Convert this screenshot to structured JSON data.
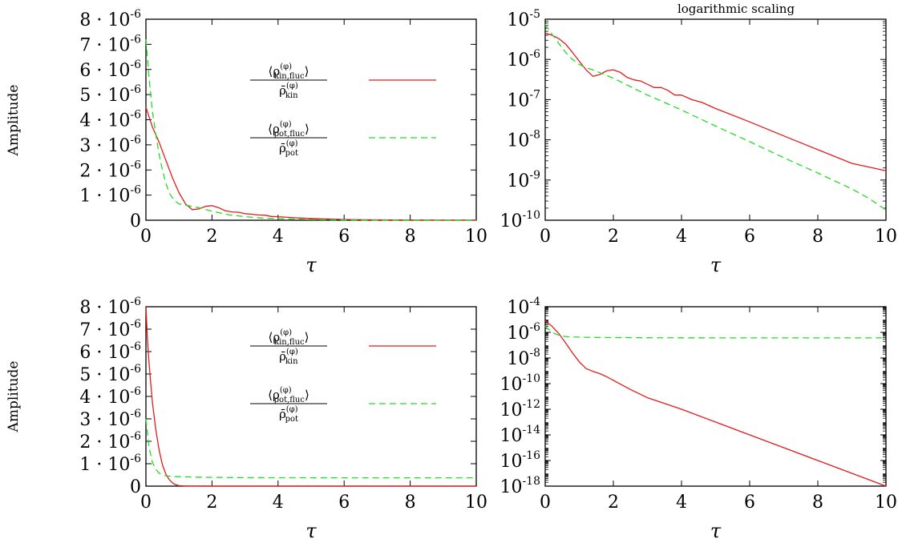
{
  "top_note": "logarithmic scaling",
  "chart_data": [
    {
      "id": "tl",
      "type": "line",
      "ylabel": "Amplitude",
      "xlabel": "τ",
      "yscale": "linear",
      "xlim": [
        0,
        10
      ],
      "ylim": [
        0,
        8e-06
      ],
      "xticks": [
        "0",
        "2",
        "4",
        "6",
        "8",
        "10"
      ],
      "yticks": [
        {
          "base": "0",
          "exp": ""
        },
        {
          "base": "1 · 10",
          "exp": "-6"
        },
        {
          "base": "2 · 10",
          "exp": "-6"
        },
        {
          "base": "3 · 10",
          "exp": "-6"
        },
        {
          "base": "4 · 10",
          "exp": "-6"
        },
        {
          "base": "5 · 10",
          "exp": "-6"
        },
        {
          "base": "6 · 10",
          "exp": "-6"
        },
        {
          "base": "7 · 10",
          "exp": "-6"
        },
        {
          "base": "8 · 10",
          "exp": "-6"
        }
      ],
      "legend": {
        "placement": "top-right",
        "entries": [
          {
            "num": "⟨ρ",
            "num_sub": "kin,fluc",
            "num_sup": "(φ)",
            "num_close": "⟩",
            "den": "ρ̄",
            "den_sub": "kin",
            "den_sup": "(φ)"
          },
          {
            "num": "⟨ρ",
            "num_sub": "pot,fluc",
            "num_sup": "(φ)",
            "num_close": "⟩",
            "den": "ρ̄",
            "den_sub": "pot",
            "den_sup": "(φ)"
          }
        ]
      },
      "series": [
        {
          "color": "#e41a1c",
          "dash": "none",
          "x": [
            0,
            0.2,
            0.4,
            0.6,
            0.8,
            1.0,
            1.2,
            1.4,
            1.6,
            1.8,
            2.0,
            2.2,
            2.4,
            2.6,
            2.8,
            3.0,
            3.2,
            3.4,
            3.6,
            3.8,
            4.0,
            4.5,
            5.0,
            6.0,
            7.0,
            8.0,
            9.0,
            10.0
          ],
          "y": [
            4.5e-06,
            3.7e-06,
            3.1e-06,
            2.4e-06,
            1.7e-06,
            1.1e-06,
            6.5e-07,
            4.2e-07,
            4.5e-07,
            5.5e-07,
            5.8e-07,
            5e-07,
            3.8e-07,
            3.3e-07,
            3.2e-07,
            2.6e-07,
            2.4e-07,
            2.1e-07,
            2e-07,
            1.5e-07,
            1.4e-07,
            1e-07,
            7e-08,
            3e-08,
            1.6e-08,
            8e-09,
            4e-09,
            2e-09
          ]
        },
        {
          "color": "#22dd22",
          "dash": "8,5",
          "x": [
            0,
            0.1,
            0.2,
            0.3,
            0.4,
            0.5,
            0.6,
            0.7,
            0.8,
            0.9,
            1.0,
            1.2,
            1.4,
            1.6,
            1.8,
            2.0,
            2.5,
            3.0,
            3.5,
            4.0,
            5.0,
            6.0,
            7.0,
            8.0,
            9.0,
            10.0
          ],
          "y": [
            7.2e-06,
            5.6e-06,
            4.3e-06,
            3.4e-06,
            2.6e-06,
            2e-06,
            1.5e-06,
            1.1e-06,
            9e-07,
            7.5e-07,
            6.5e-07,
            6e-07,
            5.5e-07,
            5e-07,
            4.3e-07,
            3.6e-07,
            2.2e-07,
            1.4e-07,
            9e-08,
            6e-08,
            2.5e-08,
            1e-08,
            4e-09,
            1.8e-09,
            8e-10,
            2e-10
          ]
        }
      ]
    },
    {
      "id": "tr",
      "type": "line",
      "ylabel": "",
      "xlabel": "τ",
      "yscale": "log",
      "xlim": [
        0,
        10
      ],
      "ylim": [
        1e-10,
        1e-05
      ],
      "xticks": [
        "0",
        "2",
        "4",
        "6",
        "8",
        "10"
      ],
      "yticks": [
        {
          "base": "10",
          "exp": "-10"
        },
        {
          "base": "10",
          "exp": "-9"
        },
        {
          "base": "10",
          "exp": "-8"
        },
        {
          "base": "10",
          "exp": "-7"
        },
        {
          "base": "10",
          "exp": "-6"
        },
        {
          "base": "10",
          "exp": "-5"
        }
      ],
      "series": [
        {
          "color": "#e41a1c",
          "dash": "none",
          "x": [
            0,
            0.2,
            0.4,
            0.6,
            0.8,
            1.0,
            1.2,
            1.4,
            1.6,
            1.8,
            2.0,
            2.2,
            2.4,
            2.6,
            2.8,
            3.0,
            3.2,
            3.4,
            3.6,
            3.8,
            4.0,
            4.3,
            4.6,
            5.0,
            6.0,
            7.0,
            8.0,
            9.0,
            10.0
          ],
          "y": [
            4.5e-06,
            4e-06,
            3.3e-06,
            2.4e-06,
            1.5e-06,
            9e-07,
            5.5e-07,
            3.8e-07,
            4.2e-07,
            5.2e-07,
            5.5e-07,
            4.8e-07,
            3.6e-07,
            3.1e-07,
            2.9e-07,
            2.4e-07,
            2e-07,
            2e-07,
            1.7e-07,
            1.3e-07,
            1.3e-07,
            1e-07,
            8.5e-08,
            6e-08,
            2.8e-08,
            1.25e-08,
            5.7e-09,
            2.6e-09,
            1.7e-09
          ]
        },
        {
          "color": "#22dd22",
          "dash": "8,5",
          "x": [
            0,
            0.1,
            0.2,
            0.3,
            0.4,
            0.5,
            0.6,
            0.8,
            1.0,
            1.2,
            1.4,
            1.6,
            1.8,
            2.0,
            2.5,
            3.0,
            3.5,
            4.0,
            5.0,
            6.0,
            7.0,
            8.0,
            9.0,
            9.5,
            10.0
          ],
          "y": [
            7.5e-06,
            5.5e-06,
            4.2e-06,
            3.3e-06,
            2.5e-06,
            1.9e-06,
            1.5e-06,
            1e-06,
            7.5e-07,
            6.2e-07,
            5.5e-07,
            4.7e-07,
            4e-07,
            3.4e-07,
            2.1e-07,
            1.3e-07,
            8.5e-08,
            5.5e-08,
            2.2e-08,
            9e-09,
            3.6e-09,
            1.5e-09,
            6e-10,
            3.5e-10,
            1.8e-10
          ]
        }
      ]
    },
    {
      "id": "bl",
      "type": "line",
      "ylabel": "Amplitude",
      "xlabel": "τ",
      "yscale": "linear",
      "xlim": [
        0,
        10
      ],
      "ylim": [
        0,
        8e-06
      ],
      "xticks": [
        "0",
        "2",
        "4",
        "6",
        "8",
        "10"
      ],
      "yticks": [
        {
          "base": "0",
          "exp": ""
        },
        {
          "base": "1 · 10",
          "exp": "-6"
        },
        {
          "base": "2 · 10",
          "exp": "-6"
        },
        {
          "base": "3 · 10",
          "exp": "-6"
        },
        {
          "base": "4 · 10",
          "exp": "-6"
        },
        {
          "base": "5 · 10",
          "exp": "-6"
        },
        {
          "base": "6 · 10",
          "exp": "-6"
        },
        {
          "base": "7 · 10",
          "exp": "-6"
        },
        {
          "base": "8 · 10",
          "exp": "-6"
        }
      ],
      "legend": {
        "placement": "top-right",
        "entries": [
          {
            "num": "⟨ρ",
            "num_sub": "kin,fluc",
            "num_sup": "(φ)",
            "num_close": "⟩",
            "den": "ρ̄",
            "den_sub": "kin",
            "den_sup": "(φ)"
          },
          {
            "num": "⟨ρ",
            "num_sub": "pot,fluc",
            "num_sup": "(φ)",
            "num_close": "⟩",
            "den": "ρ̄",
            "den_sub": "pot",
            "den_sup": "(φ)"
          }
        ]
      },
      "series": [
        {
          "color": "#e41a1c",
          "dash": "none",
          "x": [
            0,
            0.05,
            0.1,
            0.15,
            0.2,
            0.3,
            0.4,
            0.5,
            0.6,
            0.7,
            0.8,
            0.9,
            1.0,
            1.2,
            1.5,
            2.0,
            3.0,
            4.0,
            6.0,
            8.0,
            10.0
          ],
          "y": [
            8e-06,
            6.4e-06,
            5.4e-06,
            4.5e-06,
            3.7e-06,
            2.5e-06,
            1.6e-06,
            9.5e-07,
            5.5e-07,
            3e-07,
            1.5e-07,
            6e-08,
            2e-08,
            6e-09,
            2e-09,
            5e-10,
            1e-10,
            0,
            0,
            0,
            0
          ]
        },
        {
          "color": "#22dd22",
          "dash": "8,5",
          "x": [
            0,
            0.1,
            0.2,
            0.3,
            0.4,
            0.5,
            0.6,
            0.8,
            1.0,
            1.5,
            2.0,
            3.0,
            4.0,
            6.0,
            8.0,
            10.0
          ],
          "y": [
            3e-06,
            1.7e-06,
            1.05e-06,
            7.5e-07,
            5.8e-07,
            5e-07,
            4.6e-07,
            4.3e-07,
            4.2e-07,
            4e-07,
            3.9e-07,
            3.8e-07,
            3.75e-07,
            3.7e-07,
            3.7e-07,
            3.7e-07
          ]
        }
      ]
    },
    {
      "id": "br",
      "type": "line",
      "ylabel": "",
      "xlabel": "τ",
      "yscale": "log",
      "xlim": [
        0,
        10
      ],
      "ylim": [
        1e-18,
        0.0001
      ],
      "xticks": [
        "0",
        "2",
        "4",
        "6",
        "8",
        "10"
      ],
      "yticks": [
        {
          "base": "10",
          "exp": "-18"
        },
        {
          "base": "10",
          "exp": "-16"
        },
        {
          "base": "10",
          "exp": "-14"
        },
        {
          "base": "10",
          "exp": "-12"
        },
        {
          "base": "10",
          "exp": "-10"
        },
        {
          "base": "10",
          "exp": "-8"
        },
        {
          "base": "10",
          "exp": "-6"
        },
        {
          "base": "10",
          "exp": "-4"
        }
      ],
      "series": [
        {
          "color": "#e41a1c",
          "dash": "none",
          "x": [
            0,
            0.2,
            0.4,
            0.6,
            0.8,
            1.0,
            1.2,
            1.4,
            1.6,
            1.8,
            2.0,
            2.5,
            3.0,
            3.5,
            4.0,
            5.0,
            6.0,
            7.0,
            8.0,
            9.0,
            10.0
          ],
          "y": [
            8e-06,
            3e-06,
            8e-07,
            1.5e-07,
            2.5e-08,
            5e-09,
            1.5e-09,
            9e-10,
            6e-10,
            3.5e-10,
            1.8e-10,
            3.5e-11,
            8e-12,
            2.8e-12,
            1e-12,
            1e-13,
            1e-14,
            1e-15,
            1e-16,
            1e-17,
            1e-18
          ]
        },
        {
          "color": "#22dd22",
          "dash": "8,5",
          "x": [
            0,
            0.1,
            0.2,
            0.3,
            0.5,
            0.7,
            1.0,
            1.5,
            2.0,
            3.0,
            4.0,
            6.0,
            8.0,
            10.0
          ],
          "y": [
            3e-06,
            1.7e-06,
            1.05e-06,
            7.5e-07,
            5e-07,
            4.5e-07,
            4.2e-07,
            4e-07,
            3.9e-07,
            3.8e-07,
            3.75e-07,
            3.7e-07,
            3.7e-07,
            3.7e-07
          ]
        }
      ]
    }
  ]
}
